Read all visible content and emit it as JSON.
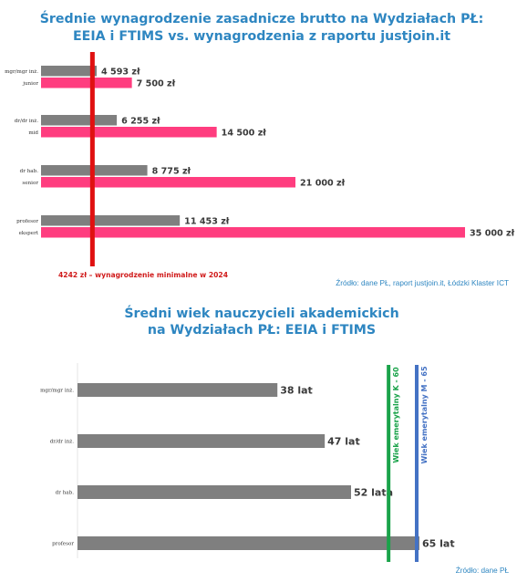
{
  "chart_data": [
    {
      "type": "bar",
      "title_lines": [
        "Średnie wynagrodzenie zasadnicze brutto na Wydziałach PŁ:",
        "EEIA i FTIMS vs. wynagrodzenia z raportu justjoin.it"
      ],
      "groups": [
        {
          "university_label": "mgr/mgr inż.",
          "industry_label": "junior",
          "university_value": 4593,
          "industry_value": 7500,
          "university_value_label": "4 593 zł",
          "industry_value_label": "7 500 zł"
        },
        {
          "university_label": "dr/dr inż.",
          "industry_label": "mid",
          "university_value": 6255,
          "industry_value": 14500,
          "university_value_label": "6 255 zł",
          "industry_value_label": "14 500 zł"
        },
        {
          "university_label": "dr hab.",
          "industry_label": "senior",
          "university_value": 8775,
          "industry_value": 21000,
          "university_value_label": "8 775 zł",
          "industry_value_label": "21 000 zł"
        },
        {
          "university_label": "profesor",
          "industry_label": "ekspert",
          "university_value": 11453,
          "industry_value": 35000,
          "university_value_label": "11 453 zł",
          "industry_value_label": "35 000 zł"
        }
      ],
      "reference_line": {
        "value": 4242,
        "label": "4242 zł – wynagrodzenie minimalne w 2024",
        "color": "#e01010"
      },
      "colors": {
        "university": "#7f7f7f",
        "industry": "#ff3d7f"
      },
      "xlim": [
        0,
        35000
      ],
      "source": "Źródło: dane PŁ, raport justjoin.it, Łódzki Klaster ICT"
    },
    {
      "type": "bar",
      "title_lines": [
        "Średni wiek nauczycieli akademickich",
        "na Wydziałach PŁ: EEIA i FTIMS"
      ],
      "categories": [
        "mgr/mgr inż.",
        "dr/dr inż.",
        "dr hab.",
        "profesor"
      ],
      "values": [
        38,
        47,
        52,
        65
      ],
      "value_labels": [
        "38 lat",
        "47 lat",
        "52 lata",
        "65 lat"
      ],
      "reference_lines": [
        {
          "value": 60,
          "label": "Wiek emerytalny K - 60",
          "color": "#1aa34a"
        },
        {
          "value": 65,
          "label": "Wiek emerytalny M - 65",
          "color": "#4472c4"
        }
      ],
      "colors": {
        "bar": "#7f7f7f"
      },
      "xlim": [
        0,
        65
      ],
      "source": "Źródło: dane PŁ"
    }
  ]
}
